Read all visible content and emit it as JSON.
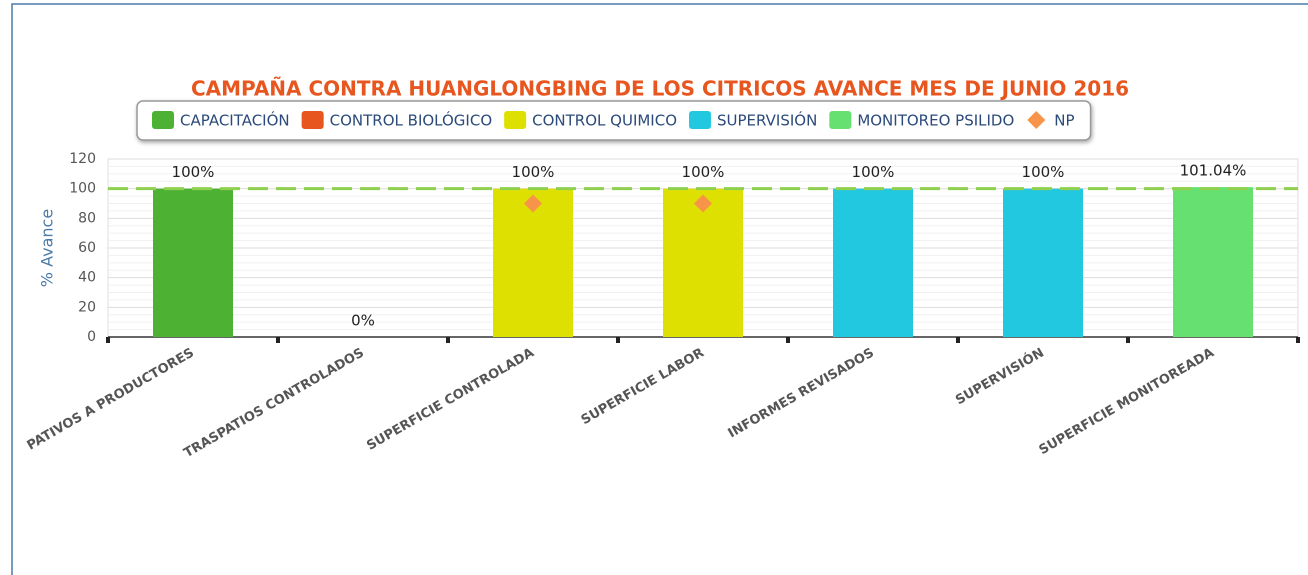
{
  "chart_data": {
    "type": "bar",
    "title": "CAMPAÑA CONTRA HUANGLONGBING DE LOS CITRICOS AVANCE MES DE JUNIO 2016",
    "y_label": "% Avance",
    "categories": [
      "PATIVOS A PRODUCTORES",
      "TRASPATIOS CONTROLADOS",
      "SUPERFICIE CONTROLADA",
      "SUPERFICIE LABOR",
      "INFORMES REVISADOS",
      "SUPERVISIÓN",
      "SUPERFICIE MONITOREADA"
    ],
    "series": [
      {
        "name": "CAPACITACIÓN",
        "color": "#4db234",
        "values": [
          100,
          null,
          null,
          null,
          null,
          null,
          null
        ],
        "value_labels": [
          "100%",
          null,
          null,
          null,
          null,
          null,
          null
        ]
      },
      {
        "name": "CONTROL BIOLÓGICO",
        "color": "#e8561f",
        "values": [
          null,
          0,
          null,
          null,
          null,
          null,
          null
        ],
        "value_labels": [
          null,
          "0%",
          null,
          null,
          null,
          null,
          null
        ]
      },
      {
        "name": "CONTROL QUIMICO",
        "color": "#dde000",
        "values": [
          null,
          null,
          100,
          100,
          null,
          null,
          null
        ],
        "value_labels": [
          null,
          null,
          "100%",
          "100%",
          null,
          null,
          null
        ]
      },
      {
        "name": "SUPERVISIÓN",
        "color": "#22c8e0",
        "values": [
          null,
          null,
          null,
          null,
          100,
          100,
          null
        ],
        "value_labels": [
          null,
          null,
          null,
          null,
          "100%",
          "100%",
          null
        ]
      },
      {
        "name": "MONITOREO PSILIDO",
        "color": "#66e070",
        "values": [
          null,
          null,
          null,
          null,
          null,
          null,
          101.04
        ],
        "value_labels": [
          null,
          null,
          null,
          null,
          null,
          null,
          "101.04%"
        ]
      },
      {
        "name": "NP",
        "type": "scatter",
        "color": "#f7944a",
        "values": [
          null,
          null,
          90,
          90,
          null,
          null,
          null
        ]
      }
    ],
    "target_line": 100,
    "target_color": "#8fd14f",
    "ylim": [
      0,
      120
    ],
    "yticks": [
      0,
      20,
      40,
      60,
      80,
      100,
      120
    ],
    "grid": true
  }
}
